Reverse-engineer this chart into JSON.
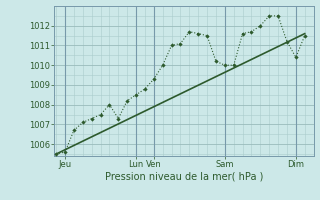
{
  "xlabel": "Pression niveau de la mer( hPa )",
  "bg_color": "#cce8e8",
  "grid_major_color": "#99bbbb",
  "grid_minor_color": "#aacccc",
  "line_color": "#2d5a2d",
  "vline_color": "#7799aa",
  "ylim": [
    1005.4,
    1013.0
  ],
  "yticks": [
    1006,
    1007,
    1008,
    1009,
    1010,
    1011,
    1012
  ],
  "series1_x": [
    0,
    0.5,
    1.0,
    1.5,
    2.0,
    2.5,
    3.0,
    3.5,
    4.0,
    4.5,
    5.0,
    5.5,
    6.0,
    6.5,
    7.0,
    7.5,
    8.0,
    8.5,
    9.0,
    9.5,
    10.0,
    10.5,
    11.0,
    11.5,
    12.0,
    12.5,
    13.0,
    13.5,
    14.0
  ],
  "series1_y": [
    1005.5,
    1005.6,
    1006.7,
    1007.1,
    1007.3,
    1007.5,
    1008.0,
    1007.3,
    1008.2,
    1008.5,
    1008.8,
    1009.3,
    1010.0,
    1011.0,
    1011.1,
    1011.7,
    1011.6,
    1011.5,
    1010.2,
    1010.0,
    1010.0,
    1011.6,
    1011.7,
    1012.0,
    1012.5,
    1012.5,
    1011.2,
    1010.4,
    1011.5
  ],
  "series2_x": [
    0,
    14.0
  ],
  "series2_y": [
    1005.5,
    1011.6
  ],
  "xtick_positions": [
    0.5,
    4.5,
    5.5,
    9.5,
    13.5
  ],
  "xtick_labels": [
    "Jeu",
    "Lun",
    "Ven",
    "Sam",
    "Dim"
  ],
  "vlines_dark": [
    0.5,
    4.5,
    5.5,
    9.5,
    13.5
  ],
  "xlim": [
    -0.1,
    14.5
  ]
}
